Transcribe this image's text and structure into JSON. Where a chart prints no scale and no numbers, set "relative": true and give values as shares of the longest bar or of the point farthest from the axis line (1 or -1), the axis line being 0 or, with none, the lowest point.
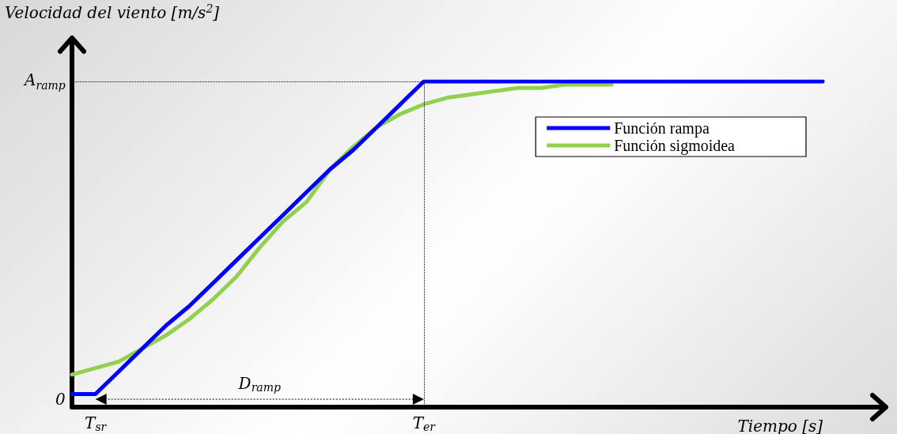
{
  "chart_data": {
    "type": "line",
    "relative": true,
    "xlabel": "Tiempo [s]",
    "ylabel": "Velocidad del viento [m/s$^{2}$]",
    "categories": [
      null,
      "T$_{sr}$",
      null,
      null,
      null,
      null,
      null,
      null,
      null,
      null,
      null,
      null,
      null,
      null,
      null,
      "T$_{er}$",
      null,
      null,
      null,
      null,
      null,
      null,
      null,
      null,
      null,
      null,
      null,
      null,
      null,
      null,
      null,
      null,
      null
    ],
    "series": [
      {
        "name": "Función rampa",
        "color": "#0000ff",
        "values": [
          0.04,
          0.04,
          0.11,
          0.18,
          0.25,
          0.31,
          0.38,
          0.45,
          0.52,
          0.59,
          0.66,
          0.73,
          0.79,
          0.86,
          0.93,
          1,
          1,
          1,
          1,
          1,
          1,
          1,
          1,
          1,
          1,
          1,
          1,
          1,
          1,
          1,
          1,
          1,
          1
        ]
      },
      {
        "name": "Función sigmoidea",
        "color": "#92d050",
        "values": [
          0.1,
          0.12,
          0.14,
          0.18,
          0.22,
          0.27,
          0.33,
          0.4,
          0.49,
          0.57,
          0.63,
          0.73,
          0.8,
          0.86,
          0.9,
          0.93,
          0.95,
          0.96,
          0.97,
          0.98,
          0.98,
          0.99,
          0.99,
          0.99,
          null,
          null,
          null,
          null,
          null,
          null,
          null,
          null,
          null
        ]
      }
    ],
    "ref_lines": [
      {
        "axis": "y",
        "value": 1,
        "label": "A$_{ramp}$",
        "line_style": "dotted",
        "color": "#000000"
      },
      {
        "axis": "x",
        "value": "T$_{er}$",
        "line_style": "dotted",
        "color": "#000000"
      }
    ],
    "annotations": [
      "0",
      "D$_{ramp}$"
    ],
    "legend": "top right",
    "grid": false,
    "marker": "none",
    "line_style": "solid"
  }
}
